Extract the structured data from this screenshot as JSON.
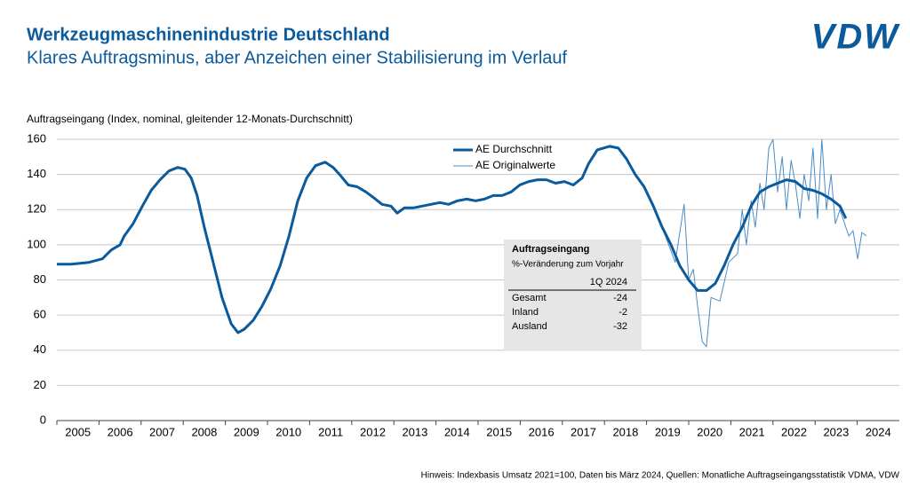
{
  "logo": "VDW",
  "chart_data": {
    "type": "line",
    "title": "Werkzeugmaschinenindustrie Deutschland",
    "subtitle": "Klares Auftragsminus, aber Anzeichen einer Stabilisierung im Verlauf",
    "y_label": "Auftragseingang (Index, nominal, gleitender 12-Monats-Durchschnitt)",
    "note": "Hinweis: Indexbasis Umsatz 2021=100, Daten bis März 2024, Quellen: Monatliche Auftragseingangsstatistik VDMA, VDW",
    "xlim": [
      2005,
      2025
    ],
    "xticks": [
      2005,
      2006,
      2007,
      2008,
      2009,
      2010,
      2011,
      2012,
      2013,
      2014,
      2015,
      2016,
      2017,
      2018,
      2019,
      2020,
      2021,
      2022,
      2023,
      2024
    ],
    "ylim": [
      0,
      160
    ],
    "yticks": [
      0,
      20,
      40,
      60,
      80,
      100,
      120,
      140,
      160
    ],
    "grid": true,
    "legend": "top-center",
    "series": [
      {
        "name": "AE Durchschnitt",
        "color": "#0a5a9c",
        "x": [
          2005.0,
          2005.34,
          2005.76,
          2006.08,
          2006.29,
          2006.5,
          2006.6,
          2006.81,
          2007.03,
          2007.24,
          2007.45,
          2007.66,
          2007.87,
          2008.04,
          2008.19,
          2008.33,
          2008.5,
          2008.71,
          2008.92,
          2009.14,
          2009.3,
          2009.45,
          2009.66,
          2009.87,
          2010.08,
          2010.3,
          2010.51,
          2010.72,
          2010.93,
          2011.14,
          2011.37,
          2011.56,
          2011.71,
          2011.92,
          2012.13,
          2012.34,
          2012.51,
          2012.72,
          2012.93,
          2013.08,
          2013.25,
          2013.46,
          2013.67,
          2013.88,
          2014.09,
          2014.3,
          2014.51,
          2014.73,
          2014.94,
          2015.15,
          2015.36,
          2015.57,
          2015.78,
          2015.99,
          2016.2,
          2016.41,
          2016.62,
          2016.84,
          2017.05,
          2017.26,
          2017.47,
          2017.62,
          2017.83,
          2018.12,
          2018.33,
          2018.52,
          2018.73,
          2018.94,
          2019.16,
          2019.37,
          2019.58,
          2019.79,
          2020.0,
          2020.21,
          2020.42,
          2020.63,
          2020.84,
          2021.05,
          2021.27,
          2021.48,
          2021.69,
          2021.9,
          2022.11,
          2022.32,
          2022.53,
          2022.74,
          2022.95,
          2023.16,
          2023.38,
          2023.59,
          2023.73
        ],
        "values": [
          89,
          89,
          90,
          92,
          97,
          100,
          105,
          112,
          122,
          131,
          137,
          142,
          144,
          143,
          138,
          128,
          110,
          90,
          70,
          55,
          50,
          52,
          57,
          65,
          75,
          88,
          105,
          125,
          138,
          145,
          147,
          144,
          140,
          134,
          133,
          130,
          127,
          123,
          122,
          118,
          121,
          121,
          122,
          123,
          124,
          123,
          125,
          126,
          125,
          126,
          128,
          128,
          130,
          134,
          136,
          137,
          137,
          135,
          136,
          134,
          138,
          146,
          154,
          156,
          155,
          149,
          140,
          133,
          122,
          110,
          100,
          88,
          80,
          74,
          74,
          78,
          88,
          100,
          110,
          122,
          130,
          133,
          135,
          137,
          136,
          132,
          131,
          129,
          126,
          122,
          115
        ]
      },
      {
        "name": "AE Originalwerte",
        "color": "#4a8cc7",
        "x": [
          2019.37,
          2019.68,
          2019.89,
          2020.0,
          2020.11,
          2020.21,
          2020.32,
          2020.42,
          2020.53,
          2020.74,
          2020.95,
          2021.16,
          2021.27,
          2021.37,
          2021.48,
          2021.58,
          2021.69,
          2021.79,
          2021.9,
          2022.0,
          2022.11,
          2022.22,
          2022.32,
          2022.43,
          2022.53,
          2022.64,
          2022.74,
          2022.85,
          2022.95,
          2023.06,
          2023.16,
          2023.27,
          2023.38,
          2023.48,
          2023.59,
          2023.8,
          2023.9,
          2024.01,
          2024.11,
          2024.22
        ],
        "values": [
          110,
          90,
          123,
          80,
          86,
          65,
          45,
          42,
          70,
          68,
          90,
          95,
          120,
          100,
          125,
          110,
          135,
          120,
          155,
          160,
          130,
          150,
          120,
          148,
          135,
          115,
          140,
          125,
          155,
          115,
          160,
          120,
          140,
          112,
          120,
          105,
          108,
          92,
          107,
          105
        ]
      }
    ]
  },
  "table": {
    "title": "Auftragseingang",
    "subtitle": "%-Veränderung zum Vorjahr",
    "header": "1Q 2024",
    "rows": [
      [
        "Gesamt",
        -24
      ],
      [
        "Inland",
        -2
      ],
      [
        "Ausland",
        -32
      ]
    ]
  }
}
